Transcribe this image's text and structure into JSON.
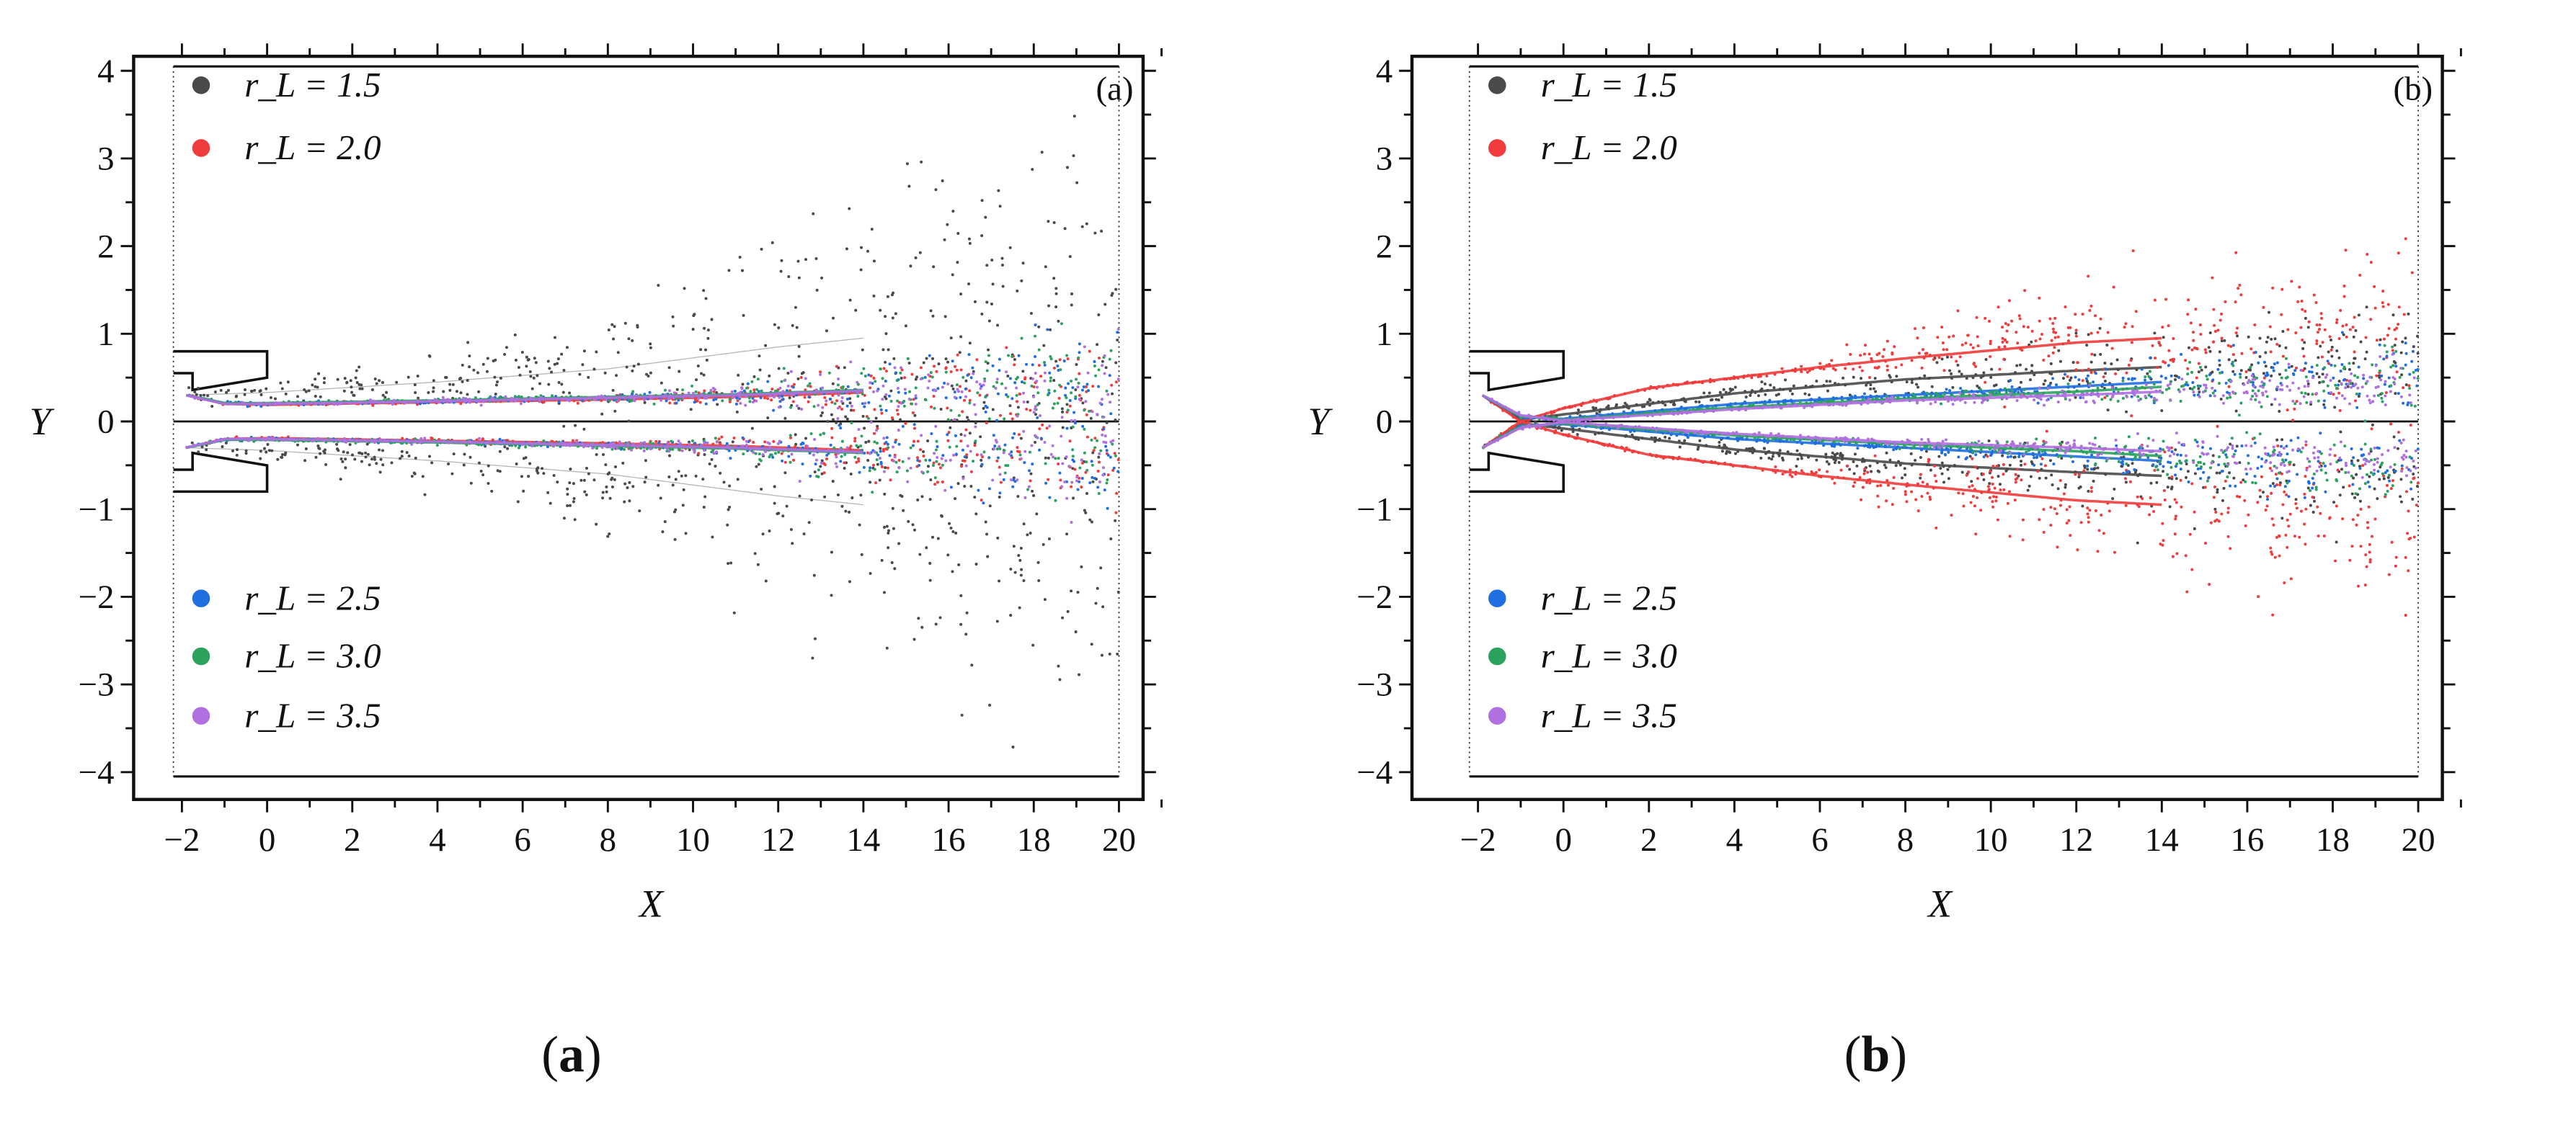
{
  "chart_data": [
    {
      "type": "scatter",
      "panel_label": "(a)",
      "caption_open": "(",
      "caption_letter": "a",
      "caption_close": ")",
      "xlabel": "X",
      "ylabel": "Y",
      "xlim": [
        -2.6,
        21.6
      ],
      "ylim": [
        -4.3,
        4.4
      ],
      "xticks": [
        "−2",
        "0",
        "2",
        "4",
        "6",
        "8",
        "10",
        "12",
        "14",
        "16",
        "18",
        "20"
      ],
      "xtick_values": [
        -2,
        0,
        2,
        4,
        6,
        8,
        10,
        12,
        14,
        16,
        18,
        20
      ],
      "yticks": [
        "4",
        "3",
        "2",
        "1",
        "0",
        "−1",
        "−2",
        "−3",
        "−4"
      ],
      "ytick_values": [
        4,
        3,
        2,
        1,
        0,
        -1,
        -2,
        -3,
        -4
      ],
      "legend_top": [
        "r_L = 1.5",
        "r_L = 2.0"
      ],
      "legend_bottom": [
        "r_L = 2.5",
        "r_L = 3.0",
        "r_L = 3.5"
      ],
      "series": [
        {
          "name": "r_L = 1.5",
          "value": "1.5",
          "color": "#4a4a4a",
          "profile_x": [
            -1.9,
            0,
            4,
            8,
            12,
            16,
            20
          ],
          "center": [
            0.3,
            0.33,
            0.45,
            0.6,
            0.85,
            1.05,
            1.2
          ],
          "spread": [
            0.03,
            0.06,
            0.13,
            0.3,
            0.65,
            0.95,
            1.3
          ],
          "points": 900
        },
        {
          "name": "r_L = 2.0",
          "value": "2.0",
          "color": "#f03c3c",
          "profile_x": [
            -1.9,
            -1,
            0,
            4,
            8,
            11,
            14,
            17,
            20
          ],
          "center": [
            0.3,
            0.2,
            0.19,
            0.22,
            0.25,
            0.28,
            0.33,
            0.38,
            0.4
          ],
          "spread": [
            0.01,
            0.01,
            0.01,
            0.015,
            0.02,
            0.05,
            0.15,
            0.25,
            0.3
          ],
          "points": 500
        },
        {
          "name": "r_L = 2.5",
          "value": "2.5",
          "color": "#1f6fe0",
          "profile_x": [
            -1.9,
            -1,
            0,
            4,
            8,
            11,
            14,
            17,
            20
          ],
          "center": [
            0.3,
            0.21,
            0.2,
            0.23,
            0.27,
            0.3,
            0.35,
            0.4,
            0.42
          ],
          "spread": [
            0.01,
            0.01,
            0.01,
            0.015,
            0.02,
            0.05,
            0.15,
            0.25,
            0.3
          ],
          "points": 500
        },
        {
          "name": "r_L = 3.0",
          "value": "3.0",
          "color": "#2ca25f",
          "profile_x": [
            -1.9,
            -1,
            0,
            4,
            8,
            11,
            14,
            17,
            20
          ],
          "center": [
            0.3,
            0.21,
            0.21,
            0.24,
            0.28,
            0.31,
            0.36,
            0.4,
            0.43
          ],
          "spread": [
            0.01,
            0.01,
            0.01,
            0.015,
            0.02,
            0.05,
            0.15,
            0.25,
            0.3
          ],
          "points": 500
        },
        {
          "name": "r_L = 3.5",
          "value": "3.5",
          "color": "#b070e0",
          "profile_x": [
            -1.9,
            -1,
            0,
            4,
            8,
            11,
            14,
            17,
            20
          ],
          "center": [
            0.3,
            0.2,
            0.2,
            0.23,
            0.27,
            0.3,
            0.35,
            0.4,
            0.42
          ],
          "spread": [
            0.01,
            0.01,
            0.01,
            0.015,
            0.02,
            0.05,
            0.15,
            0.25,
            0.3
          ],
          "points": 500
        }
      ]
    },
    {
      "type": "scatter",
      "panel_label": "(b)",
      "caption_open": "(",
      "caption_letter": "b",
      "caption_close": ")",
      "xlabel": "X",
      "ylabel": "Y",
      "xlim": [
        -2.6,
        21.6
      ],
      "ylim": [
        -4.3,
        4.4
      ],
      "xticks": [
        "−2",
        "0",
        "2",
        "4",
        "6",
        "8",
        "10",
        "12",
        "14",
        "16",
        "18",
        "20"
      ],
      "xtick_values": [
        -2,
        0,
        2,
        4,
        6,
        8,
        10,
        12,
        14,
        16,
        18,
        20
      ],
      "yticks": [
        "4",
        "3",
        "2",
        "1",
        "0",
        "−1",
        "−2",
        "−3",
        "−4"
      ],
      "ytick_values": [
        4,
        3,
        2,
        1,
        0,
        -1,
        -2,
        -3,
        -4
      ],
      "legend_top": [
        "r_L = 1.5",
        "r_L = 2.0"
      ],
      "legend_bottom": [
        "r_L = 2.5",
        "r_L = 3.0",
        "r_L = 3.5"
      ],
      "series": [
        {
          "name": "r_L = 1.5",
          "value": "1.5",
          "color": "#4a4a4a",
          "profile_x": [
            -1.9,
            -1,
            0,
            4,
            8,
            12,
            16,
            20
          ],
          "center": [
            0.3,
            0.02,
            0.08,
            0.32,
            0.48,
            0.58,
            0.66,
            0.72
          ],
          "spread": [
            0.01,
            0.01,
            0.02,
            0.04,
            0.08,
            0.18,
            0.25,
            0.3
          ],
          "points": 700
        },
        {
          "name": "r_L = 2.0",
          "value": "2.0",
          "color": "#f03c3c",
          "profile_x": [
            -1.9,
            -1,
            0,
            2,
            4,
            6,
            8,
            12,
            16,
            20
          ],
          "center": [
            0.3,
            0.0,
            0.15,
            0.38,
            0.5,
            0.62,
            0.72,
            0.9,
            1.0,
            1.1
          ],
          "spread": [
            0.01,
            0.01,
            0.01,
            0.01,
            0.01,
            0.03,
            0.15,
            0.3,
            0.42,
            0.5
          ],
          "points": 900
        },
        {
          "name": "r_L = 2.5",
          "value": "2.5",
          "color": "#1f6fe0",
          "profile_x": [
            -1.9,
            -1,
            0,
            4,
            8,
            12,
            16,
            20
          ],
          "center": [
            0.3,
            0.05,
            0.03,
            0.2,
            0.3,
            0.4,
            0.5,
            0.55
          ],
          "spread": [
            0.01,
            0.01,
            0.01,
            0.01,
            0.02,
            0.08,
            0.15,
            0.2
          ],
          "points": 600
        },
        {
          "name": "r_L = 3.0",
          "value": "3.0",
          "color": "#2ca25f",
          "profile_x": [
            -1.9,
            -1,
            0,
            4,
            8,
            12,
            16,
            20
          ],
          "center": [
            0.3,
            0.06,
            0.02,
            0.16,
            0.26,
            0.34,
            0.45,
            0.5
          ],
          "spread": [
            0.01,
            0.01,
            0.01,
            0.01,
            0.02,
            0.06,
            0.13,
            0.18
          ],
          "points": 600
        },
        {
          "name": "r_L = 3.5",
          "value": "3.5",
          "color": "#b070e0",
          "profile_x": [
            -1.9,
            -1,
            0,
            4,
            8,
            12,
            16,
            20
          ],
          "center": [
            0.3,
            0.07,
            0.01,
            0.14,
            0.24,
            0.3,
            0.38,
            0.42
          ],
          "spread": [
            0.01,
            0.01,
            0.01,
            0.01,
            0.02,
            0.05,
            0.1,
            0.14
          ],
          "points": 600
        }
      ]
    }
  ]
}
